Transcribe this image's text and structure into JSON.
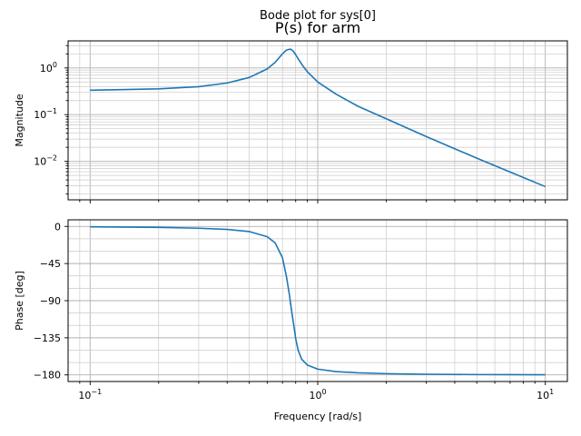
{
  "chart_data": {
    "type": "line",
    "suptitle": "Bode plot for sys[0]",
    "title": "P(s) for arm",
    "x_scale": "log",
    "xlim": [
      0.08,
      12.5
    ],
    "xlabel": "Frequency [rad/s]",
    "x_ticks": [
      {
        "base": "10",
        "exp": "−1",
        "value": 0.1
      },
      {
        "base": "10",
        "exp": "0",
        "value": 1
      },
      {
        "base": "10",
        "exp": "1",
        "value": 10
      }
    ],
    "grid": true,
    "panels": [
      {
        "name": "magnitude",
        "ylabel": "Magnitude",
        "y_scale": "log",
        "ylim": [
          0.0015,
          3.8
        ],
        "y_ticks": [
          {
            "base": "10",
            "exp": "0",
            "value": 1
          },
          {
            "base": "10",
            "exp": "−1",
            "value": 0.1
          },
          {
            "base": "10",
            "exp": "−2",
            "value": 0.01
          }
        ],
        "series": [
          {
            "x": [
              0.1,
              0.2,
              0.3,
              0.4,
              0.5,
              0.6,
              0.65,
              0.7,
              0.73,
              0.76,
              0.78,
              0.8,
              0.83,
              0.86,
              0.9,
              1.0,
              1.2,
              1.5,
              2.0,
              3.0,
              5.0,
              7.0,
              10.0
            ],
            "y": [
              0.333,
              0.357,
              0.397,
              0.476,
              0.625,
              0.952,
              1.32,
              2.01,
              2.43,
              2.53,
              2.3,
              1.92,
              1.44,
              1.11,
              0.833,
              0.5,
              0.277,
              0.152,
              0.0816,
              0.0339,
              0.0117,
              0.00591,
              0.00288
            ]
          }
        ]
      },
      {
        "name": "phase",
        "ylabel": "Phase [deg]",
        "y_scale": "linear",
        "ylim": [
          -188,
          8
        ],
        "y_ticks": [
          0,
          -45,
          -90,
          -135,
          -180
        ],
        "y_tick_labels": [
          "0",
          "−45",
          "−90",
          "−135",
          "−180"
        ],
        "series": [
          {
            "x": [
              0.1,
              0.2,
              0.3,
              0.4,
              0.5,
              0.6,
              0.65,
              0.7,
              0.73,
              0.75,
              0.77,
              0.79,
              0.8,
              0.82,
              0.85,
              0.9,
              1.0,
              1.2,
              1.5,
              2.0,
              3.0,
              5.0,
              7.0,
              10.0
            ],
            "y": [
              -0.5,
              -1.2,
              -2.2,
              -3.6,
              -6.2,
              -12.5,
              -20.0,
              -38.0,
              -62.0,
              -82.0,
              -105.0,
              -125.0,
              -136.0,
              -150.0,
              -161.0,
              -168.0,
              -173.0,
              -176.0,
              -177.5,
              -178.5,
              -179.2,
              -179.6,
              -179.7,
              -179.8
            ]
          }
        ]
      }
    ],
    "line_color": "#1f77b4"
  }
}
